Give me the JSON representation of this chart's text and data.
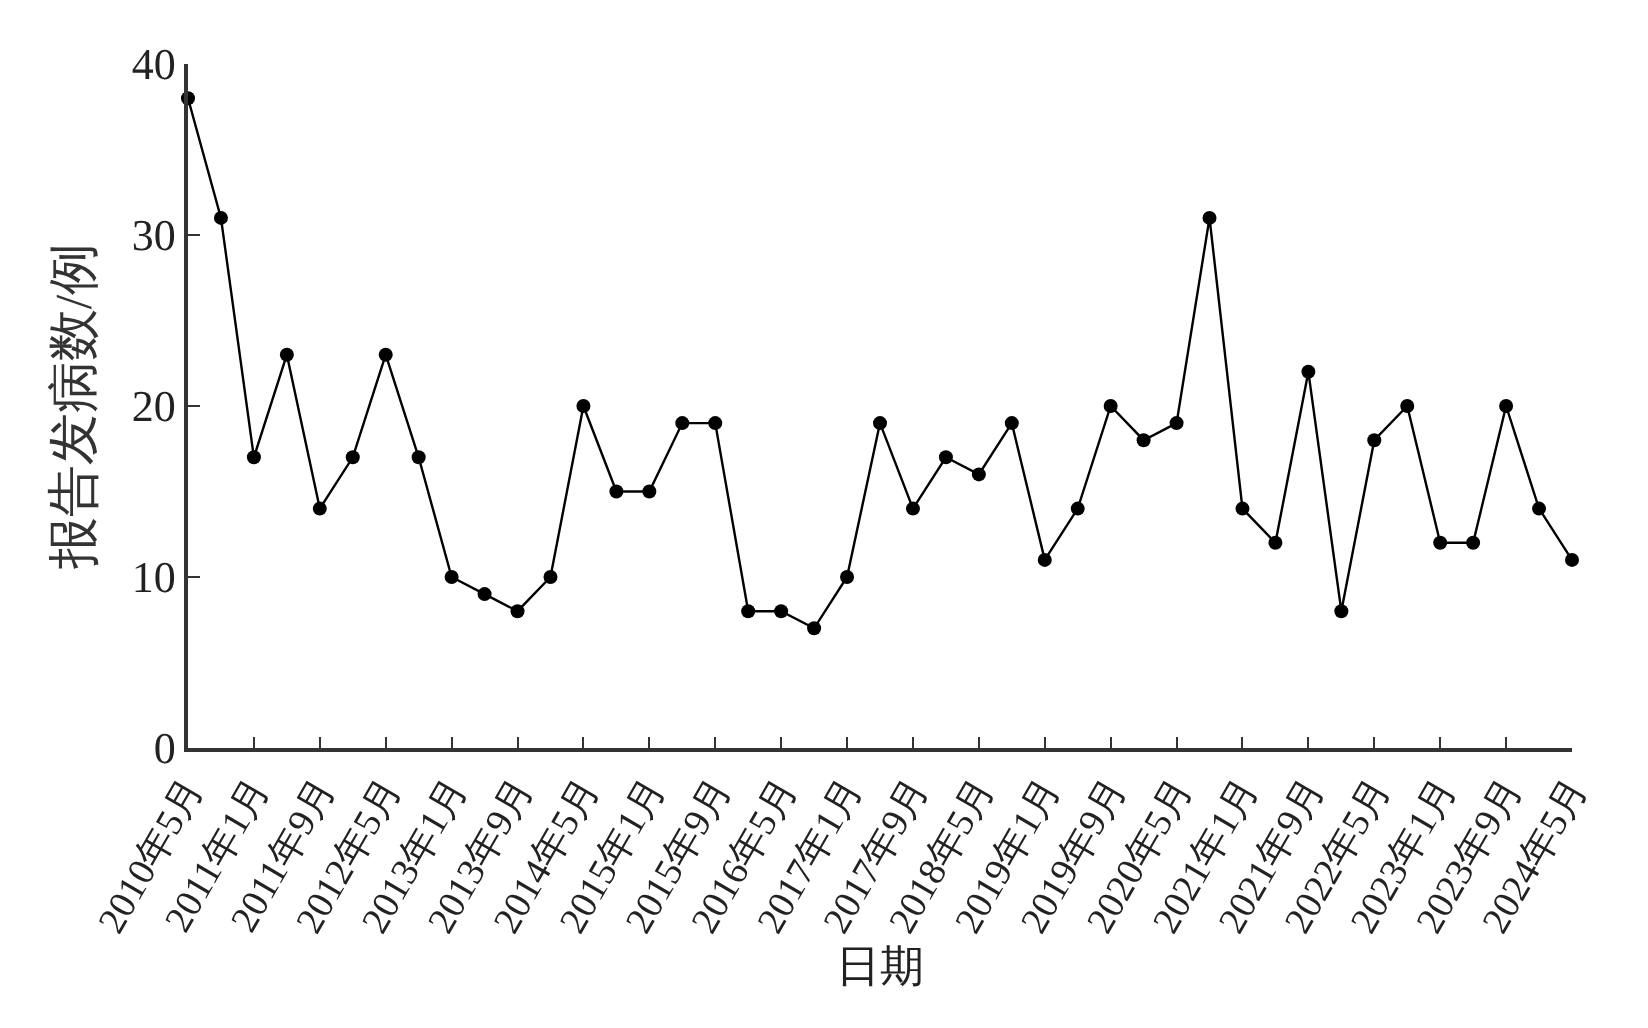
{
  "chart_data": {
    "type": "line",
    "xlabel": "日期",
    "ylabel": "报告发病数/例",
    "categories": [
      "2010年5月",
      null,
      "2011年1月",
      null,
      "2011年9月",
      null,
      "2012年5月",
      null,
      "2013年1月",
      null,
      "2013年9月",
      null,
      "2014年5月",
      null,
      "2015年1月",
      null,
      "2015年9月",
      null,
      "2016年5月",
      null,
      "2017年1月",
      null,
      "2017年9月",
      null,
      "2018年5月",
      null,
      "2019年1月",
      null,
      "2019年9月",
      null,
      "2020年5月",
      null,
      "2021年1月",
      null,
      "2021年9月",
      null,
      "2022年5月",
      null,
      "2023年1月",
      null,
      "2023年9月",
      null,
      "2024年5月"
    ],
    "series": [
      {
        "color": "#000000",
        "values": [
          38,
          31,
          17,
          23,
          14,
          17,
          23,
          17,
          10,
          9,
          8,
          10,
          20,
          15,
          15,
          19,
          19,
          8,
          8,
          7,
          10,
          19,
          14,
          17,
          16,
          19,
          11,
          14,
          20,
          18,
          19,
          31,
          14,
          12,
          22,
          8,
          18,
          20,
          12,
          12,
          20,
          14,
          11
        ]
      }
    ],
    "ylim": [
      0,
      40
    ],
    "yticks": [
      0,
      10,
      20,
      30,
      40
    ],
    "marker": "circle",
    "line_style": "solid"
  }
}
